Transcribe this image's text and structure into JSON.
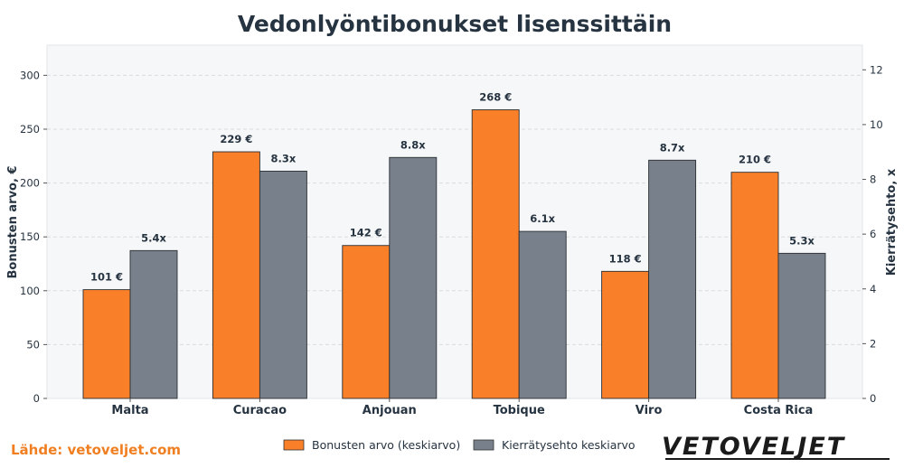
{
  "chart_data": {
    "type": "bar",
    "title": "Vedonlyöntibonukset lisenssittäin",
    "categories": [
      "Malta",
      "Curacao",
      "Anjouan",
      "Tobique",
      "Viro",
      "Costa Rica"
    ],
    "series": [
      {
        "name": "Bonusten arvo (keskiarvo)",
        "axis": "left",
        "color": "#f97f28",
        "values": [
          101,
          229,
          142,
          268,
          118,
          210
        ],
        "labels": [
          "101 €",
          "229 €",
          "142 €",
          "268 €",
          "118 €",
          "210 €"
        ]
      },
      {
        "name": "Kierrätysehto keskiarvo",
        "axis": "right",
        "color": "#78818b",
        "values": [
          5.4,
          8.3,
          8.8,
          6.1,
          8.7,
          5.3
        ],
        "labels": [
          "5.4x",
          "8.3x",
          "8.8x",
          "6.1x",
          "8.7x",
          "5.3x"
        ]
      }
    ],
    "ylabel": "Bonusten arvo, €",
    "ylim": [
      0,
      328
    ],
    "yticks": [
      "0",
      "50",
      "100",
      "150",
      "200",
      "250",
      "300"
    ],
    "y2label": "Kierrätysehto, x",
    "y2lim": [
      0,
      12.9
    ],
    "y2ticks": [
      "0",
      "2",
      "4",
      "6",
      "8",
      "10",
      "12"
    ],
    "grid": true,
    "legend_position": "bottom-center"
  },
  "footer": {
    "source": "Lähde: vetoveljet.com",
    "logo": "VETOVELJET"
  },
  "colors": {
    "plot_bg": "#f6f7f9",
    "grid": "#d8dce0",
    "text": "#263340",
    "accent": "#f07f22"
  }
}
